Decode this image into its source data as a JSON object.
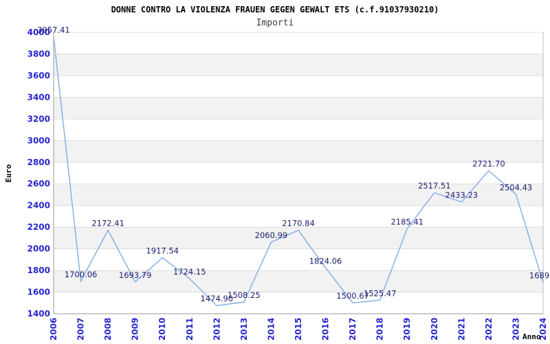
{
  "chart_data": {
    "type": "line",
    "title": "DONNE CONTRO LA VIOLENZA FRAUEN GEGEN GEWALT ETS (c.f.91037930210)",
    "subtitle": "Importi",
    "xlabel": "Anno",
    "ylabel": "Euro",
    "categories": [
      "2006",
      "2007",
      "2008",
      "2009",
      "2010",
      "2011",
      "2012",
      "2013",
      "2014",
      "2015",
      "2016",
      "2017",
      "2018",
      "2019",
      "2020",
      "2021",
      "2022",
      "2023",
      "2024"
    ],
    "series": [
      {
        "name": "Importi",
        "values": [
          3957.41,
          1700.06,
          2172.41,
          1693.79,
          1917.54,
          1724.15,
          1474.9,
          1508.25,
          2060.99,
          2170.84,
          1824.06,
          1500.67,
          1525.47,
          2185.41,
          2517.51,
          2433.23,
          2721.7,
          2504.43,
          1689.0
        ]
      }
    ],
    "point_labels": [
      "3957.41",
      "1700.06",
      "2172.41",
      "1693.79",
      "1917.54",
      "1724.15",
      "1474.90",
      "1508.25",
      "2060.99",
      "2170.84",
      "1824.06",
      "1500.67",
      "1525.47",
      "2185.41",
      "2517.51",
      "2433.23",
      "2721.70",
      "2504.43",
      "1689.0"
    ],
    "ylim": [
      1400,
      4000
    ],
    "ytick_step": 200,
    "grid": true,
    "banded_background": true,
    "xtick_rotation": -90,
    "legend": "none",
    "colors": {
      "line": "#7fabe6",
      "tick_label": "#2626cd",
      "point_label": "#1c1c70",
      "band": "#f2f2f2",
      "gridline": "#dcdcdc",
      "axis": "#999999",
      "right_border": "#bbbbbb",
      "title": "#000000",
      "subtitle": "#3c3c3c",
      "axis_title": "#000000",
      "background": "#ffffff"
    }
  }
}
